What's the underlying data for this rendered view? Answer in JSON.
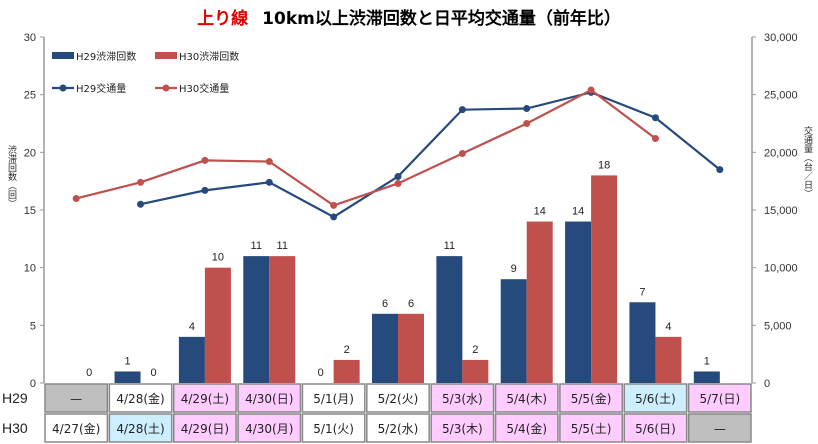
{
  "title": {
    "prefix": "上り線",
    "main": "10km以上渋滞回数と日平均交通量（前年比）"
  },
  "chart_data": {
    "type": "bar+line",
    "title": "上り線 10km以上渋滞回数と日平均交通量（前年比）",
    "ylabel_left": "渋滞回数（回）",
    "ylabel_right": "交通量（台／日）",
    "ylim_left": [
      0,
      30
    ],
    "ylim_right": [
      0,
      30000
    ],
    "yticks_left": [
      "0",
      "5",
      "10",
      "15",
      "20",
      "25",
      "30"
    ],
    "yticks_right": [
      "0",
      "5,000",
      "10,000",
      "15,000",
      "20,000",
      "25,000",
      "30,000"
    ],
    "grid": false,
    "legend_placement": "top-left",
    "colors": {
      "h29": "#264a7b",
      "h30": "#c0504d"
    },
    "row_labels": [
      "H29",
      "H30"
    ],
    "categories_h29": [
      "—",
      "4/28(金)",
      "4/29(土)",
      "4/30(日)",
      "5/1(月)",
      "5/2(火)",
      "5/3(水)",
      "5/4(木)",
      "5/5(金)",
      "5/6(土)",
      "5/7(日)"
    ],
    "categories_h30": [
      "4/27(金)",
      "4/28(土)",
      "4/29(日)",
      "4/30(月)",
      "5/1(火)",
      "5/2(水)",
      "5/3(木)",
      "5/4(金)",
      "5/5(土)",
      "5/6(日)",
      "—"
    ],
    "cell_colors_h29": [
      "gray",
      "white",
      "pink",
      "pink",
      "white",
      "white",
      "pink",
      "pink",
      "pink",
      "blue",
      "pink"
    ],
    "cell_colors_h30": [
      "white",
      "blue",
      "pink",
      "pink",
      "white",
      "white",
      "pink",
      "pink",
      "pink",
      "pink",
      "gray"
    ],
    "series": [
      {
        "name": "H29渋滞回数",
        "kind": "bar",
        "axis": "left",
        "values": [
          null,
          1,
          4,
          11,
          0,
          6,
          11,
          9,
          14,
          7,
          1
        ]
      },
      {
        "name": "H30渋滞回数",
        "kind": "bar",
        "axis": "left",
        "values": [
          0,
          0,
          10,
          11,
          2,
          6,
          2,
          14,
          18,
          4,
          null
        ]
      },
      {
        "name": "H29交通量",
        "kind": "line",
        "axis": "right",
        "values": [
          null,
          15500,
          16700,
          17400,
          14400,
          17900,
          23700,
          23800,
          25200,
          23000,
          18500
        ]
      },
      {
        "name": "H30交通量",
        "kind": "line",
        "axis": "right",
        "values": [
          16000,
          17400,
          19300,
          19200,
          15400,
          17300,
          19900,
          22500,
          25400,
          21200,
          null
        ]
      }
    ]
  }
}
